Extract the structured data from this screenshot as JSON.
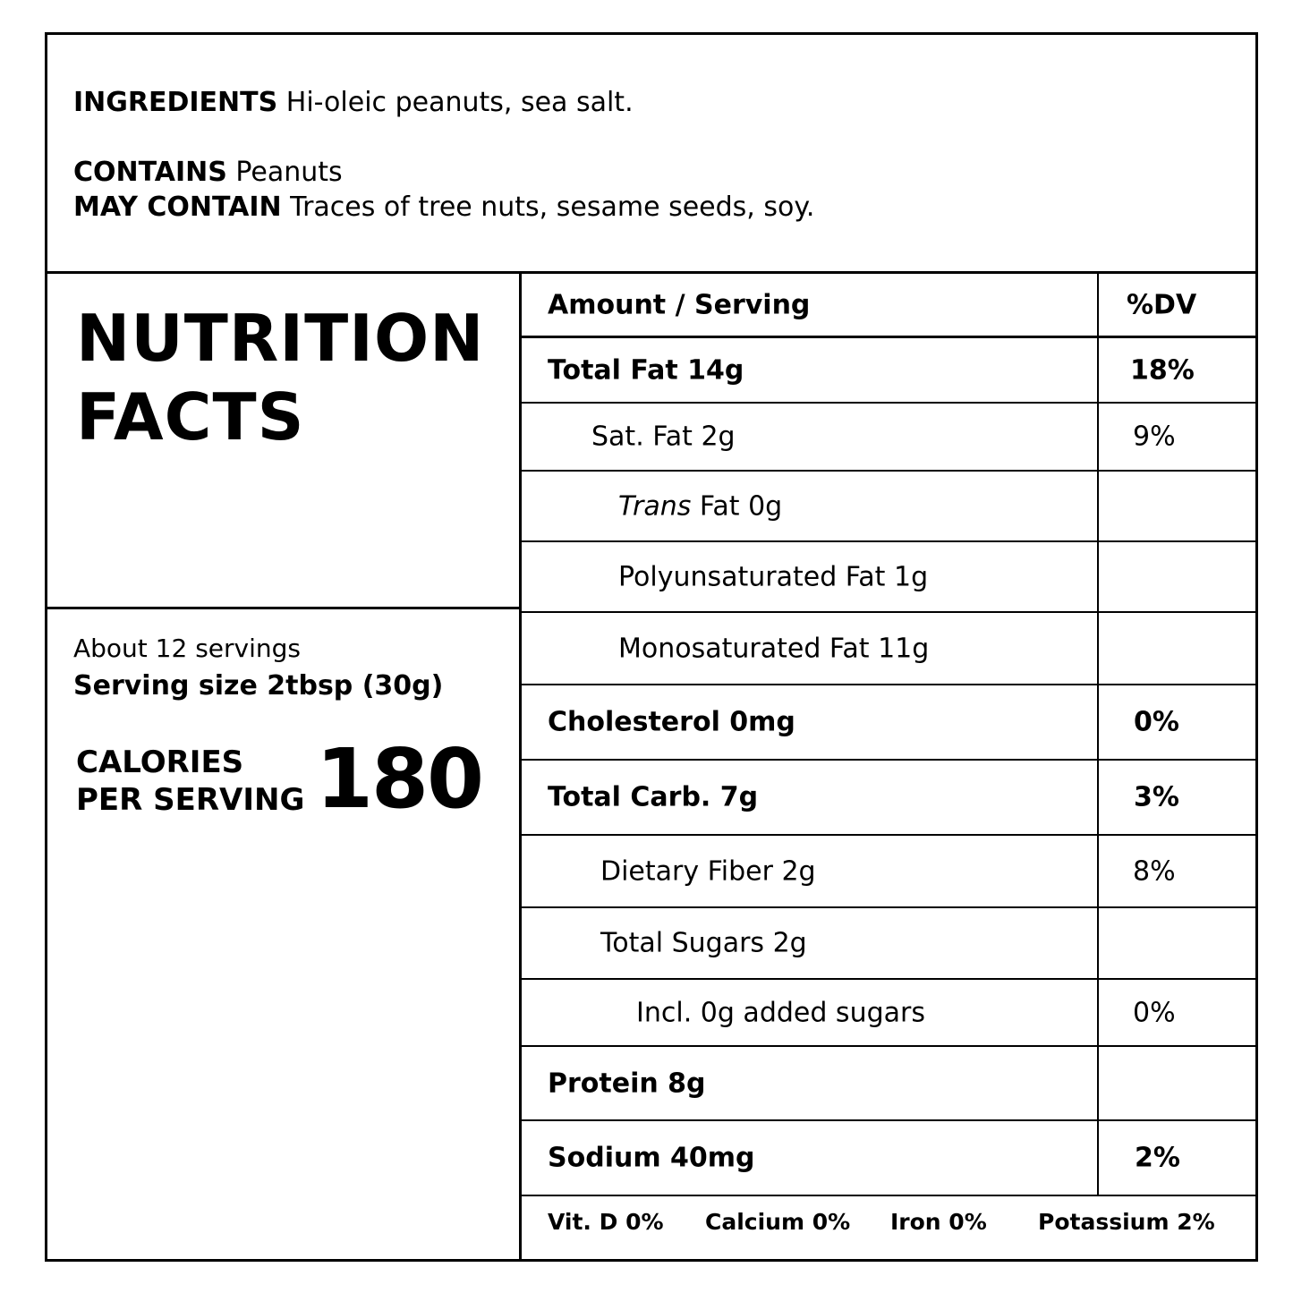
{
  "ingredients": {
    "label": "INGREDIENTS",
    "text": "Hi-oleic peanuts, sea salt.",
    "contains_label": "CONTAINS",
    "contains_text": "Peanuts",
    "may_contain_label": "MAY CONTAIN",
    "may_contain_text": "Traces of tree nuts, sesame seeds, soy."
  },
  "title": {
    "line1": "NUTRITION",
    "line2": "FACTS"
  },
  "serving": {
    "servings": "About 12 servings",
    "size": "Serving size 2tbsp (30g)",
    "calories_label_1": "CALORIES",
    "calories_label_2": "PER SERVING",
    "calories_value": "180"
  },
  "table": {
    "header_amount": "Amount / Serving",
    "header_dv": "%DV",
    "rows": [
      {
        "name": "Total Fat 14g",
        "dv": "18%"
      },
      {
        "name": "Sat. Fat 2g",
        "dv": "9%"
      },
      {
        "name_italic": "Trans",
        "name_rest": " Fat 0g",
        "dv": ""
      },
      {
        "name": "Polyunsaturated Fat 1g",
        "dv": ""
      },
      {
        "name": "Monosaturated Fat 11g",
        "dv": ""
      },
      {
        "name": "Cholesterol 0mg",
        "dv": "0%"
      },
      {
        "name": "Total Carb. 7g",
        "dv": "3%"
      },
      {
        "name": "Dietary Fiber 2g",
        "dv": "8%"
      },
      {
        "name": "Total Sugars 2g",
        "dv": ""
      },
      {
        "name": "Incl. 0g added sugars",
        "dv": "0%"
      },
      {
        "name": "Protein 8g",
        "dv": ""
      },
      {
        "name": "Sodium 40mg",
        "dv": "2%"
      }
    ]
  },
  "vitamins": {
    "vit_d": "Vit. D 0%",
    "calcium": "Calcium 0%",
    "iron": "Iron 0%",
    "potassium": "Potassium 2%"
  }
}
